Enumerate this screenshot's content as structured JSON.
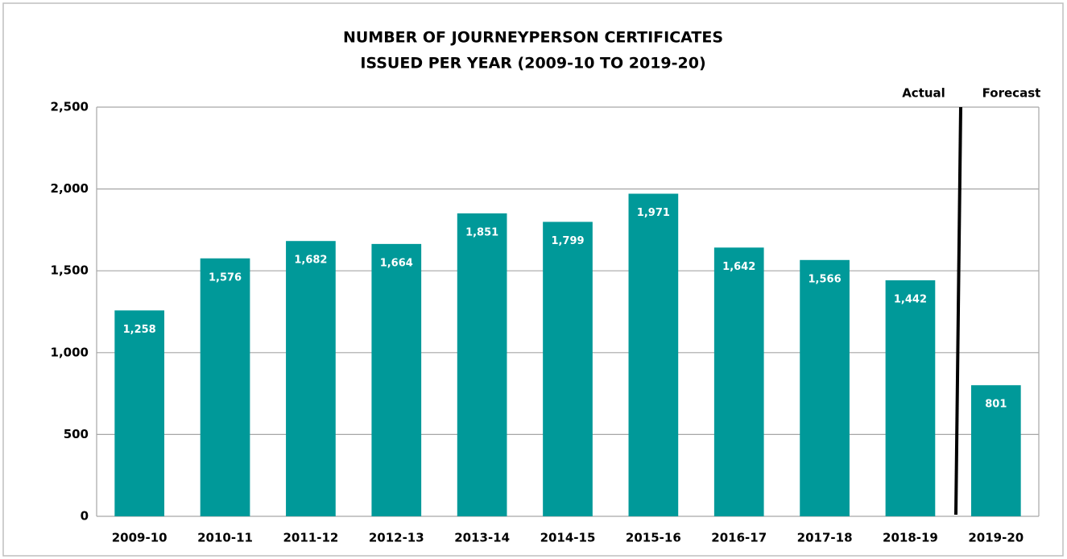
{
  "chart_data": {
    "type": "bar",
    "title": [
      "NUMBER OF  JOURNEYPERSON CERTIFICATES",
      "ISSUED PER YEAR (2009-10 TO 2019-20)"
    ],
    "annotations": [
      "Actual",
      "Forecast"
    ],
    "categories": [
      "2009-10",
      "2010-11",
      "2011-12",
      "2012-13",
      "2013-14",
      "2014-15",
      "2015-16",
      "2016-17",
      "2017-18",
      "2018-19",
      "2019-20"
    ],
    "values": [
      1258,
      1576,
      1682,
      1664,
      1851,
      1799,
      1971,
      1642,
      1566,
      1442,
      801
    ],
    "value_labels": [
      "1,258",
      "1,576",
      "1,682",
      "1,664",
      "1,851",
      "1,799",
      "1,971",
      "1,642",
      "1,566",
      "1,442",
      "801"
    ],
    "color": "#009999",
    "ylim": [
      0,
      2500
    ],
    "yticks": [
      0,
      500,
      {
        "value": 1000,
        "label": "1,000"
      },
      {
        "value": 1500,
        "label": "1,500"
      },
      {
        "value": 2000,
        "label": "2,000"
      },
      {
        "value": 2500,
        "label": "2,500"
      }
    ],
    "grid": true
  }
}
